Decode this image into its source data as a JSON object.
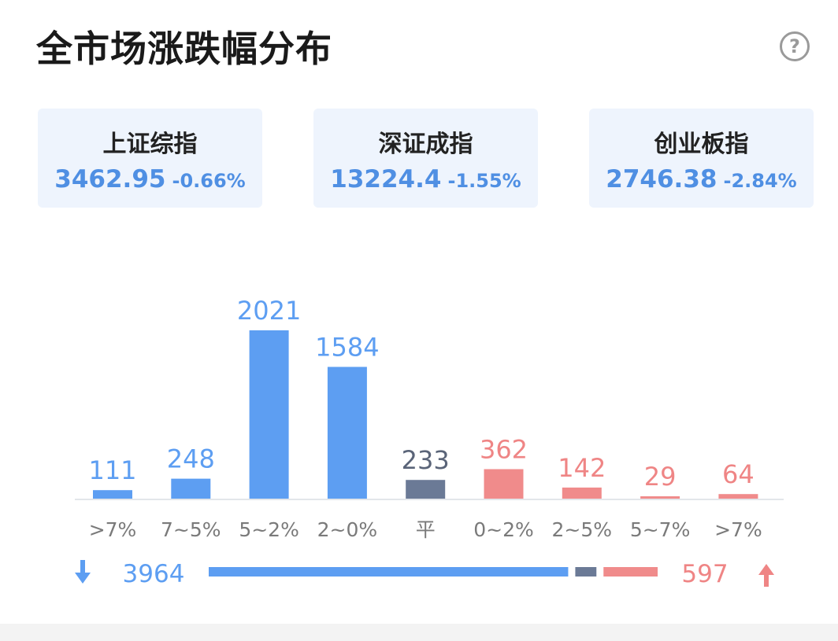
{
  "header": {
    "title": "全市场涨跌幅分布"
  },
  "icons": {
    "help": "help-circle-icon",
    "down": "arrow-down-icon",
    "up": "arrow-up-icon"
  },
  "indices": [
    {
      "name": "上证综指",
      "value": "3462.95",
      "change": "-0.66%"
    },
    {
      "name": "深证成指",
      "value": "13224.4",
      "change": "-1.55%"
    },
    {
      "name": "创业板指",
      "value": "2746.38",
      "change": "-2.84%"
    }
  ],
  "colors": {
    "down": "#5d9ef2",
    "flat": "#6b7a96",
    "up": "#f08b8b",
    "down_text": "#5d9ef2",
    "up_text": "#ef8585",
    "flat_text": "#5a6478"
  },
  "chart_data": {
    "type": "bar",
    "categories": [
      ">7%",
      "7~5%",
      "5~2%",
      "2~0%",
      "平",
      "0~2%",
      "2~5%",
      "5~7%",
      ">7%"
    ],
    "values": [
      111,
      248,
      2021,
      1584,
      233,
      362,
      142,
      29,
      64
    ],
    "groups": [
      "down",
      "down",
      "down",
      "down",
      "flat",
      "up",
      "up",
      "up",
      "up"
    ],
    "ylim": [
      0,
      2021
    ],
    "grid": false
  },
  "summary": {
    "down_total": "3964",
    "up_total": "597",
    "flat_total": 233
  }
}
